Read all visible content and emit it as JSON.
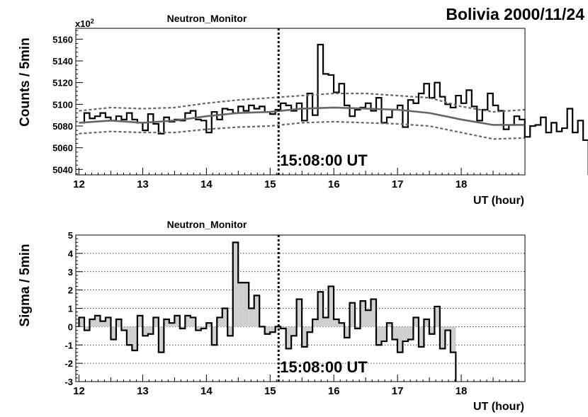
{
  "page": {
    "main_title": "Bolivia 2000/11/24"
  },
  "chart_data": [
    {
      "type": "line",
      "title": "Neutron_Monitor",
      "ylabel": "Counts / 5min",
      "xlabel": "UT (hour)",
      "y_multiplier_label": "x10",
      "y_multiplier_exp": "2",
      "xlim": [
        11.95,
        19.0
      ],
      "ylim": [
        5035,
        5170
      ],
      "xticks": [
        12,
        13,
        14,
        15,
        16,
        17,
        18
      ],
      "yticks": [
        5040,
        5060,
        5080,
        5100,
        5120,
        5140,
        5160
      ],
      "grid": false,
      "event_time": 15.133,
      "event_label": "15:08:00 UT",
      "bin_hours": 0.0833,
      "counts": {
        "x_start": 12.0,
        "values": [
          5083,
          5092,
          5087,
          5089,
          5092,
          5088,
          5085,
          5089,
          5086,
          5092,
          5086,
          5083,
          5076,
          5091,
          5082,
          5073,
          5088,
          5084,
          5086,
          5085,
          5092,
          5094,
          5086,
          5085,
          5074,
          5093,
          5086,
          5096,
          5095,
          5092,
          5098,
          5094,
          5099,
          5096,
          5098,
          5093,
          5091,
          5095,
          5101,
          5099,
          5094,
          5101,
          5085,
          5110,
          5090,
          5155,
          5128,
          5127,
          5111,
          5119,
          5099,
          5089,
          5095,
          5097,
          5101,
          5094,
          5106,
          5083,
          5088,
          5095,
          5099,
          5079,
          5104,
          5101,
          5110,
          5119,
          5106,
          5120,
          5107,
          5100,
          5097,
          5108,
          5101,
          5113,
          5098,
          5085,
          5095,
          5110,
          5099,
          5094,
          5077,
          5081,
          5089,
          5086,
          5070,
          5080,
          5081,
          5088,
          5074,
          5083,
          5075,
          5078,
          5096,
          5074,
          5085,
          5067
        ]
      },
      "mean_curve": {
        "x": [
          12.0,
          12.5,
          13.0,
          13.5,
          14.0,
          14.5,
          15.0,
          15.5,
          16.0,
          16.5,
          17.0,
          17.5,
          18.0,
          18.5,
          19.0
        ],
        "y": [
          5083,
          5085,
          5083,
          5085,
          5089,
          5092,
          5093,
          5096,
          5097,
          5096,
          5095,
          5092,
          5086,
          5081,
          5081
        ]
      },
      "upper_band": {
        "x": [
          12.0,
          12.5,
          13.0,
          13.5,
          14.0,
          14.5,
          15.0,
          15.5,
          16.0,
          16.5,
          17.0,
          17.5,
          18.0,
          18.5,
          19.0
        ],
        "y": [
          5094,
          5097,
          5096,
          5097,
          5101,
          5104,
          5106,
          5108,
          5110,
          5110,
          5108,
          5106,
          5098,
          5093,
          5095
        ]
      },
      "lower_band": {
        "x": [
          12.0,
          12.5,
          13.0,
          13.5,
          14.0,
          14.5,
          15.0,
          15.5,
          16.0,
          16.5,
          17.0,
          17.5,
          18.0,
          18.5,
          19.0
        ],
        "y": [
          5073,
          5075,
          5074,
          5074,
          5077,
          5079,
          5080,
          5083,
          5084,
          5083,
          5082,
          5080,
          5074,
          5068,
          5069
        ]
      }
    },
    {
      "type": "bar",
      "title": "Neutron_Monitor",
      "ylabel": "Sigma / 5min",
      "xlabel": "UT (hour)",
      "xlim": [
        11.95,
        19.0
      ],
      "ylim": [
        -3,
        5
      ],
      "xticks": [
        12,
        13,
        14,
        15,
        16,
        17,
        18
      ],
      "yticks": [
        -3,
        -2,
        -1,
        0,
        1,
        2,
        3,
        4,
        5
      ],
      "grid": true,
      "event_time": 15.133,
      "event_label": "15:08:00 UT",
      "bin_hours": 0.0833,
      "sigma": {
        "x_start": 12.0,
        "values": [
          0.5,
          -0.2,
          0.4,
          0.6,
          0.3,
          0.5,
          -0.7,
          0.4,
          -0.2,
          -1.0,
          -1.3,
          0.6,
          -0.5,
          -0.4,
          0.5,
          -1.4,
          0.4,
          0.2,
          0.6,
          -0.1,
          0.6,
          0.5,
          -0.2,
          -0.1,
          0.2,
          -1.0,
          0.5,
          1.0,
          -0.5,
          4.6,
          2.4,
          2.4,
          1.0,
          1.7,
          0.0,
          -0.4,
          -0.3,
          0.0,
          -0.1,
          -1.2,
          -0.5,
          1.5,
          -1.1,
          -0.3,
          0.4,
          1.9,
          0.5,
          2.2,
          0.4,
          0.2,
          -0.6,
          1.3,
          -0.1,
          1.4,
          0.9,
          1.5,
          -1.0,
          -0.8,
          0.2,
          -0.7,
          -1.4,
          -0.8,
          -0.7,
          0.5,
          -1.1,
          0.4,
          -0.4,
          1.1,
          -1.2,
          -0.2,
          -1.4
        ]
      }
    }
  ]
}
